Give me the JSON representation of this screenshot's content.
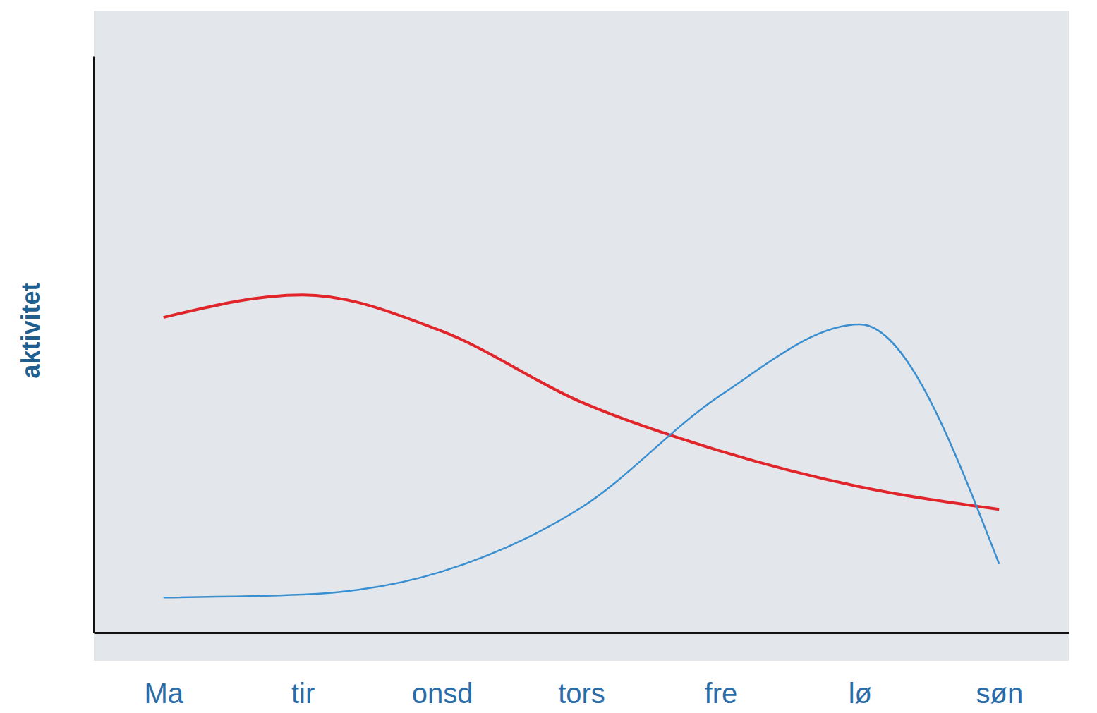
{
  "chart_data": {
    "type": "line",
    "y_label": "aktivitet",
    "categories": [
      "Ma",
      "tir",
      "onsd",
      "tors",
      "fre",
      "lø",
      "søn"
    ],
    "series": [
      {
        "color": "#e0262b",
        "values": [
          5.47,
          5.86,
          5.23,
          4.0,
          3.15,
          2.53,
          2.14
        ]
      },
      {
        "color": "#3a8fd0",
        "values": [
          0.61,
          0.66,
          1.06,
          2.17,
          4.12,
          5.35,
          1.19
        ]
      }
    ],
    "ylim": [
      0,
      10
    ],
    "tick_labels": "x"
  }
}
